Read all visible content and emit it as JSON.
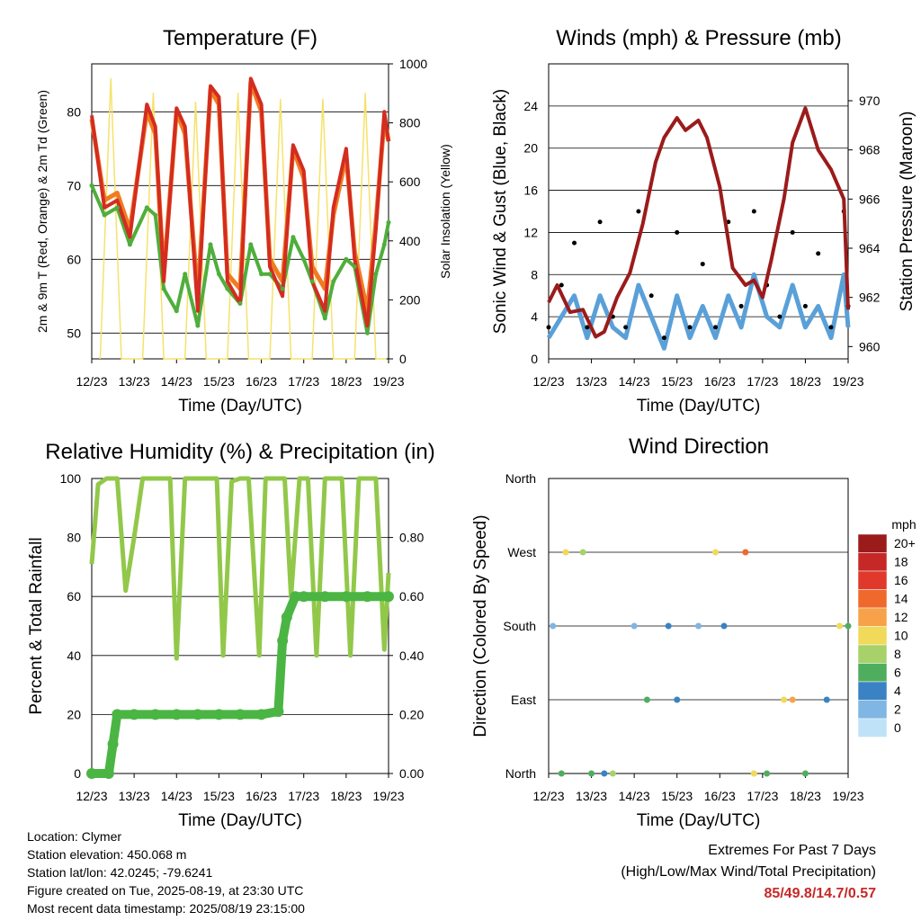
{
  "x_tick_labels": [
    "12/23",
    "13/23",
    "14/23",
    "15/23",
    "16/23",
    "17/23",
    "18/23",
    "19/23"
  ],
  "chart_data": [
    {
      "type": "line",
      "title": "Temperature (F)",
      "xlabel": "Time (Day/UTC)",
      "ylabel": "2m & 9m T (Red, Orange) & 2m Td (Green)",
      "ylabel_right": "Solar Insolation (Yellow)",
      "ylim": [
        46.5,
        86.5
      ],
      "yticks": [
        50,
        60,
        70,
        80
      ],
      "ylim_right": [
        0,
        1000
      ],
      "yticks_right": [
        0,
        200,
        400,
        600,
        800,
        1000
      ],
      "xlim": [
        12,
        19
      ],
      "grid": true,
      "colors": {
        "t2m": "#d42c20",
        "t9m": "#f07b22",
        "td": "#4fae3c",
        "solar": "#f6e26a"
      },
      "series": [
        {
          "name": "2m T",
          "x": [
            12.0,
            12.3,
            12.6,
            12.9,
            13.3,
            13.5,
            13.7,
            14.0,
            14.2,
            14.5,
            14.8,
            15.0,
            15.2,
            15.5,
            15.75,
            16.0,
            16.2,
            16.5,
            16.75,
            17.0,
            17.2,
            17.5,
            17.7,
            18.0,
            18.2,
            18.5,
            18.7,
            18.9,
            19.0
          ],
          "y": [
            79.5,
            67,
            68,
            63,
            81,
            78,
            57,
            80.5,
            78,
            53,
            83.5,
            82,
            57,
            54,
            84.5,
            81,
            59,
            55,
            75.5,
            72,
            57,
            53,
            67,
            75,
            60,
            51,
            64,
            80,
            76
          ]
        },
        {
          "name": "9m T",
          "x": [
            12.0,
            12.3,
            12.6,
            12.9,
            13.3,
            13.5,
            13.7,
            14.0,
            14.2,
            14.5,
            14.8,
            15.0,
            15.2,
            15.5,
            15.75,
            16.0,
            16.2,
            16.5,
            16.75,
            17.0,
            17.2,
            17.5,
            17.7,
            18.0,
            18.2,
            18.5,
            18.7,
            18.9,
            19.0
          ],
          "y": [
            79,
            68,
            69,
            64,
            80,
            77,
            58,
            80,
            77,
            55,
            83,
            81,
            58,
            56,
            84,
            80,
            60,
            57,
            75,
            71,
            59,
            56,
            66,
            74,
            61,
            53,
            65,
            79,
            76
          ]
        },
        {
          "name": "2m Td",
          "x": [
            12.0,
            12.3,
            12.6,
            12.9,
            13.3,
            13.5,
            13.7,
            14.0,
            14.2,
            14.5,
            14.8,
            15.0,
            15.2,
            15.5,
            15.75,
            16.0,
            16.2,
            16.5,
            16.75,
            17.0,
            17.2,
            17.5,
            17.7,
            18.0,
            18.2,
            18.5,
            18.7,
            18.9,
            19.0
          ],
          "y": [
            70,
            66,
            67,
            62,
            67,
            66,
            56,
            53,
            58,
            51,
            62,
            58,
            56,
            54,
            62,
            58,
            58,
            56,
            63,
            60,
            57,
            52,
            57,
            60,
            59,
            50,
            58,
            62,
            65
          ]
        },
        {
          "name": "Solar Insolation",
          "x": [
            12.2,
            12.45,
            12.7,
            12.95,
            13.2,
            13.45,
            13.7,
            13.95,
            14.2,
            14.45,
            14.7,
            14.95,
            15.2,
            15.45,
            15.7,
            15.95,
            16.2,
            16.45,
            16.7,
            16.95,
            17.2,
            17.45,
            17.7,
            17.95,
            18.2,
            18.45,
            18.7,
            18.95
          ],
          "y": [
            0,
            950,
            0,
            0,
            0,
            900,
            0,
            0,
            0,
            870,
            0,
            0,
            0,
            900,
            0,
            0,
            0,
            880,
            0,
            0,
            0,
            880,
            0,
            0,
            0,
            900,
            0,
            0
          ]
        }
      ]
    },
    {
      "type": "line",
      "title": "Winds (mph) & Pressure (mb)",
      "xlabel": "Time (Day/UTC)",
      "ylabel": "Sonic Wind & Gust (Blue, Black)",
      "ylabel_right": "Station Pressure (Maroon)",
      "ylim": [
        0,
        28
      ],
      "yticks": [
        0,
        4,
        8,
        12,
        16,
        20,
        24
      ],
      "ylim_right": [
        959.5,
        971.5
      ],
      "yticks_right": [
        960,
        962,
        964,
        966,
        968,
        970
      ],
      "xlim": [
        12,
        19
      ],
      "grid": true,
      "colors": {
        "wind": "#5aa0d8",
        "gust": "#000000",
        "pressure": "#9b1b1b"
      },
      "series": [
        {
          "name": "Station Pressure",
          "x": [
            12.0,
            12.2,
            12.5,
            12.8,
            13.1,
            13.3,
            13.6,
            13.9,
            14.2,
            14.5,
            14.7,
            15.0,
            15.2,
            15.5,
            15.7,
            16.0,
            16.3,
            16.6,
            16.8,
            17.0,
            17.2,
            17.5,
            17.7,
            18.0,
            18.3,
            18.6,
            18.9,
            19.0
          ],
          "y": [
            961.8,
            962.5,
            961.4,
            961.5,
            960.4,
            960.6,
            962.0,
            963.0,
            965.0,
            967.5,
            968.5,
            969.3,
            968.8,
            969.2,
            968.5,
            966.5,
            963.2,
            962.5,
            962.7,
            962.0,
            963.5,
            966.0,
            968.3,
            969.7,
            968.0,
            967.2,
            966.0,
            961.5
          ]
        },
        {
          "name": "Sonic Wind",
          "x": [
            12.0,
            12.3,
            12.6,
            12.9,
            13.2,
            13.5,
            13.8,
            14.1,
            14.4,
            14.7,
            15.0,
            15.3,
            15.6,
            15.9,
            16.2,
            16.5,
            16.8,
            17.1,
            17.4,
            17.7,
            18.0,
            18.3,
            18.6,
            18.9,
            19.0
          ],
          "y": [
            2,
            4,
            6,
            2,
            6,
            3,
            2,
            7,
            4,
            1,
            6,
            2,
            5,
            2,
            6,
            3,
            8,
            4,
            3,
            7,
            3,
            5,
            2,
            8,
            3
          ]
        },
        {
          "name": "Gust",
          "x": [
            12.0,
            12.3,
            12.6,
            12.9,
            13.2,
            13.5,
            13.8,
            14.1,
            14.4,
            14.7,
            15.0,
            15.3,
            15.6,
            15.9,
            16.2,
            16.5,
            16.8,
            17.1,
            17.4,
            17.7,
            18.0,
            18.3,
            18.6,
            18.9,
            19.0
          ],
          "y": [
            3,
            7,
            11,
            3,
            13,
            4,
            3,
            14,
            6,
            2,
            12,
            3,
            9,
            3,
            13,
            5,
            14,
            7,
            4,
            12,
            5,
            10,
            3,
            14,
            5
          ]
        }
      ]
    },
    {
      "type": "line",
      "title": "Relative Humidity (%) & Precipitation (in)",
      "xlabel": "Time (Day/UTC)",
      "ylabel": "Percent & Total Rainfall",
      "ylim": [
        0,
        100
      ],
      "yticks": [
        0,
        20,
        40,
        60,
        80,
        100
      ],
      "ylim_right": [
        0,
        1.0
      ],
      "yticks_right": [
        "0.00",
        "0.20",
        "0.40",
        "0.60",
        "0.80"
      ],
      "xlim": [
        12,
        19
      ],
      "grid": true,
      "colors": {
        "rh": "#92c84a",
        "precip": "#4bb544"
      },
      "series": [
        {
          "name": "Relative Humidity",
          "x": [
            12.0,
            12.15,
            12.35,
            12.6,
            12.8,
            13.0,
            13.2,
            13.5,
            13.7,
            13.85,
            14.0,
            14.2,
            14.5,
            14.8,
            14.95,
            15.1,
            15.3,
            15.5,
            15.7,
            15.95,
            16.1,
            16.3,
            16.55,
            16.7,
            16.9,
            17.1,
            17.3,
            17.5,
            17.7,
            17.9,
            18.1,
            18.3,
            18.5,
            18.7,
            18.9,
            19.0
          ],
          "y": [
            71,
            98,
            100,
            100,
            62,
            80,
            100,
            100,
            100,
            100,
            39,
            100,
            100,
            100,
            100,
            40,
            99,
            100,
            100,
            40,
            100,
            100,
            100,
            60,
            100,
            100,
            40,
            100,
            100,
            100,
            40,
            100,
            100,
            100,
            42,
            68
          ]
        },
        {
          "name": "Total Rainfall",
          "x": [
            12.0,
            12.4,
            12.5,
            12.6,
            13.0,
            13.5,
            14.0,
            14.5,
            15.0,
            15.5,
            16.0,
            16.4,
            16.5,
            16.6,
            16.8,
            17.0,
            17.5,
            18.0,
            18.5,
            19.0
          ],
          "y": [
            0.0,
            0.0,
            0.1,
            0.2,
            0.2,
            0.2,
            0.2,
            0.2,
            0.2,
            0.2,
            0.2,
            0.21,
            0.45,
            0.53,
            0.6,
            0.6,
            0.6,
            0.6,
            0.6,
            0.6
          ]
        }
      ]
    },
    {
      "type": "scatter",
      "title": "Wind Direction",
      "xlabel": "Time (Day/UTC)",
      "ylabel": "Direction (Colored By Speed)",
      "ytick_labels": [
        "North",
        "East",
        "South",
        "West",
        "North"
      ],
      "xlim": [
        12,
        19
      ],
      "grid": true,
      "colorbar": {
        "title": "mph",
        "labels": [
          "20+",
          "18",
          "16",
          "14",
          "12",
          "10",
          "8",
          "6",
          "4",
          "2",
          "0"
        ],
        "colors": [
          "#9b1b1b",
          "#c62828",
          "#e0392b",
          "#f0692c",
          "#f7a24a",
          "#f1d95a",
          "#a8d16a",
          "#4fae5e",
          "#3b82c4",
          "#7fb6e3",
          "#bfe2f7"
        ]
      },
      "points": [
        {
          "t": 12.1,
          "dir": "South",
          "mph": 2
        },
        {
          "t": 12.3,
          "dir": "North",
          "mph": 6
        },
        {
          "t": 12.4,
          "dir": "West",
          "mph": 10
        },
        {
          "t": 12.8,
          "dir": "West",
          "mph": 8
        },
        {
          "t": 13.0,
          "dir": "North",
          "mph": 6
        },
        {
          "t": 13.3,
          "dir": "North",
          "mph": 4
        },
        {
          "t": 13.5,
          "dir": "North",
          "mph": 8
        },
        {
          "t": 14.0,
          "dir": "South",
          "mph": 2
        },
        {
          "t": 14.3,
          "dir": "East",
          "mph": 6
        },
        {
          "t": 14.8,
          "dir": "South",
          "mph": 4
        },
        {
          "t": 15.0,
          "dir": "East",
          "mph": 4
        },
        {
          "t": 15.5,
          "dir": "South",
          "mph": 2
        },
        {
          "t": 15.9,
          "dir": "West",
          "mph": 10
        },
        {
          "t": 16.1,
          "dir": "South",
          "mph": 4
        },
        {
          "t": 16.6,
          "dir": "West",
          "mph": 14
        },
        {
          "t": 16.8,
          "dir": "North",
          "mph": 10
        },
        {
          "t": 17.1,
          "dir": "North",
          "mph": 6
        },
        {
          "t": 17.5,
          "dir": "East",
          "mph": 10
        },
        {
          "t": 17.7,
          "dir": "East",
          "mph": 12
        },
        {
          "t": 18.0,
          "dir": "North",
          "mph": 6
        },
        {
          "t": 18.5,
          "dir": "East",
          "mph": 4
        },
        {
          "t": 18.8,
          "dir": "South",
          "mph": 10
        },
        {
          "t": 19.0,
          "dir": "South",
          "mph": 6
        }
      ]
    }
  ],
  "info": {
    "location": "Location: Clymer",
    "elevation": "Station elevation: 450.068 m",
    "latlon": "Station lat/lon: 42.0245; -79.6241",
    "created": "Figure created on Tue, 2025-08-19, at 23:30 UTC",
    "recent": "Most recent data timestamp: 2025/08/19 23:15:00"
  },
  "extremes": {
    "title": "Extremes For Past 7 Days",
    "subtitle": "(High/Low/Max Wind/Total Precipitation)",
    "values": "85/49.8/14.7/0.57"
  }
}
